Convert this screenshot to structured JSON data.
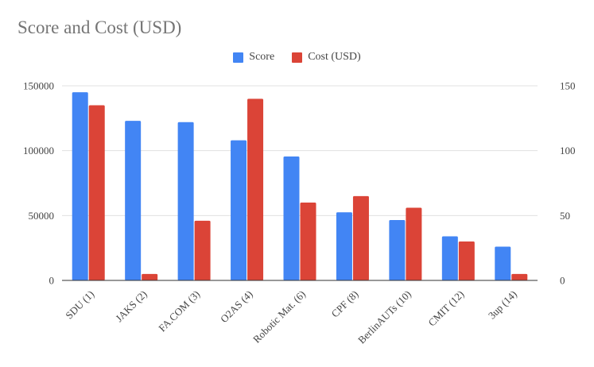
{
  "chart_data": {
    "type": "bar",
    "title": "Score and Cost (USD)",
    "categories": [
      "SDU (1)",
      "JAKS (2)",
      "FA.COM (3)",
      "O2AS (4)",
      "Robotic Mat. (6)",
      "CPF (8)",
      "BerlinAUTs (10)",
      "CMIT (12)",
      "3up (14)"
    ],
    "series": [
      {
        "name": "Score",
        "axis": "left",
        "color": "#4285f4",
        "values": [
          145000,
          123000,
          122000,
          108000,
          95500,
          52500,
          46500,
          34000,
          26000
        ]
      },
      {
        "name": "Cost (USD)",
        "axis": "right",
        "color": "#db4437",
        "values": [
          135,
          5,
          46,
          140,
          60,
          65,
          56,
          30,
          5
        ]
      }
    ],
    "left_axis": {
      "ylim": [
        0,
        150000
      ],
      "ticks": [
        "0",
        "50000",
        "100000",
        "150000"
      ]
    },
    "right_axis": {
      "ylim": [
        0,
        150
      ],
      "ticks": [
        "0",
        "50",
        "100",
        "150"
      ]
    },
    "legend_position": "top-center",
    "grid": true
  }
}
